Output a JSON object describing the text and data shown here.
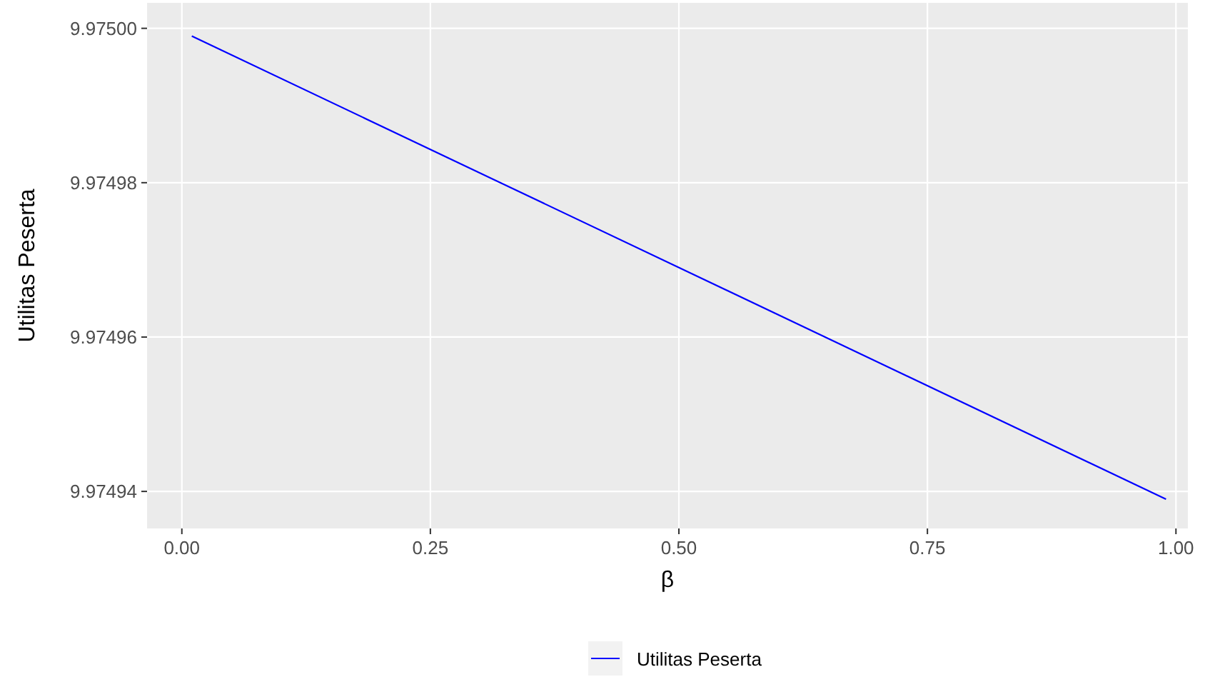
{
  "chart_data": {
    "type": "line",
    "xlabel": "β",
    "ylabel": "Utilitas Peserta",
    "x": [
      0.01,
      0.99
    ],
    "series": [
      {
        "name": "Utilitas Peserta",
        "color": "#0000ff",
        "values": [
          9.974999,
          9.974939
        ]
      }
    ],
    "xlim": [
      -0.035,
      1.012
    ],
    "xticks": [
      {
        "value": 0,
        "label": "0.00"
      },
      0.25,
      {
        "value": 0.5,
        "label": "0.50"
      },
      0.75,
      {
        "value": 1,
        "label": "1.00"
      }
    ],
    "ylim": [
      9.9749352,
      9.9750033
    ],
    "yticks": [
      {
        "value": 9.97494,
        "label": "9.97494"
      },
      {
        "value": 9.97496,
        "label": "9.97496"
      },
      {
        "value": 9.97498,
        "label": "9.97498"
      },
      {
        "value": 9.975,
        "label": "9.97500"
      }
    ],
    "grid": true,
    "legend": "bottom",
    "line_style": "solid",
    "marker": "none"
  }
}
